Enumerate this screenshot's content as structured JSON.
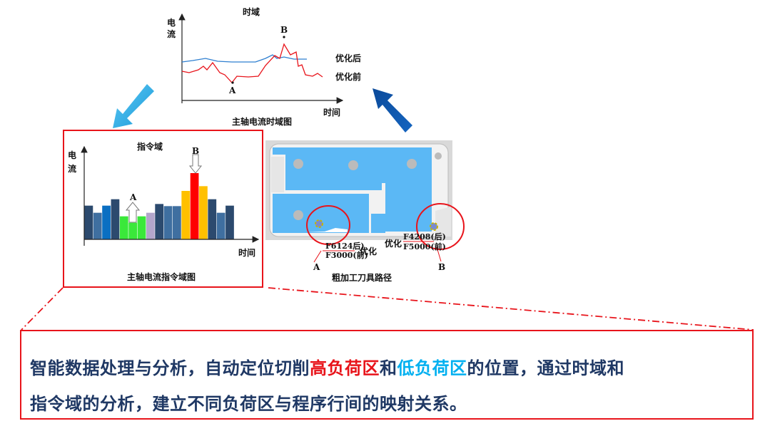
{
  "time_domain": {
    "title": "时域",
    "y_label_1": "电",
    "y_label_2": "流",
    "x_label": "时间",
    "caption": "主轴电流时域图",
    "legend_after": "优化后",
    "legend_before": "优化前",
    "point_a": "A",
    "point_b": "B",
    "colors": {
      "after": "#2f7fd0",
      "before": "#e8141b"
    }
  },
  "command_domain": {
    "title": "指令域",
    "y_label_1": "电",
    "y_label_2": "流",
    "x_label": "时间",
    "caption": "主轴电流指令域图",
    "point_a": "A",
    "point_b": "B",
    "bars": [
      {
        "value": 142,
        "color": "#2c4a6e"
      },
      {
        "value": 112,
        "color": "#3f6fa0"
      },
      {
        "value": 142,
        "color": "#0a6fc2"
      },
      {
        "value": 169,
        "color": "#2c4a6e"
      },
      {
        "value": 97,
        "color": "#3ae83a"
      },
      {
        "value": 70,
        "color": "#3ae83a"
      },
      {
        "value": 97,
        "color": "#3ae83a"
      },
      {
        "value": 112,
        "color": "#b3a5cb"
      },
      {
        "value": 149,
        "color": "#2c4a6e"
      },
      {
        "value": 140,
        "color": "#3f6fa0"
      },
      {
        "value": 140,
        "color": "#3f6fa0"
      },
      {
        "value": 204,
        "color": "#ffc000"
      },
      {
        "value": 279,
        "color": "#ff0000"
      },
      {
        "value": 224,
        "color": "#ffc000"
      },
      {
        "value": 169,
        "color": "#2c4a6e"
      },
      {
        "value": 112,
        "color": "#3f6fa0"
      },
      {
        "value": 142,
        "color": "#2c4a6e"
      }
    ]
  },
  "tool_path": {
    "caption": "粗加工刀具路径",
    "a_after": "F6124后)",
    "a_before": "F3000(前)",
    "a_opt": "优化",
    "b_after": "F4208(后)",
    "b_before": "F5000(前)",
    "b_opt": "优化",
    "point_a": "A",
    "point_b": "B"
  },
  "summary": {
    "line1_part1": "智能数据处理与分析，自动定位切削",
    "line1_high": "高负荷区",
    "line1_and": "和",
    "line1_low": "低负荷区",
    "line1_part2": "的位置，通过时域和",
    "line2": "指令域的分析，建立不同负荷区与程序行间的映射关系。",
    "colors": {
      "text": "#1f3864",
      "high": "#e8141b",
      "low": "#00b0f0"
    }
  }
}
